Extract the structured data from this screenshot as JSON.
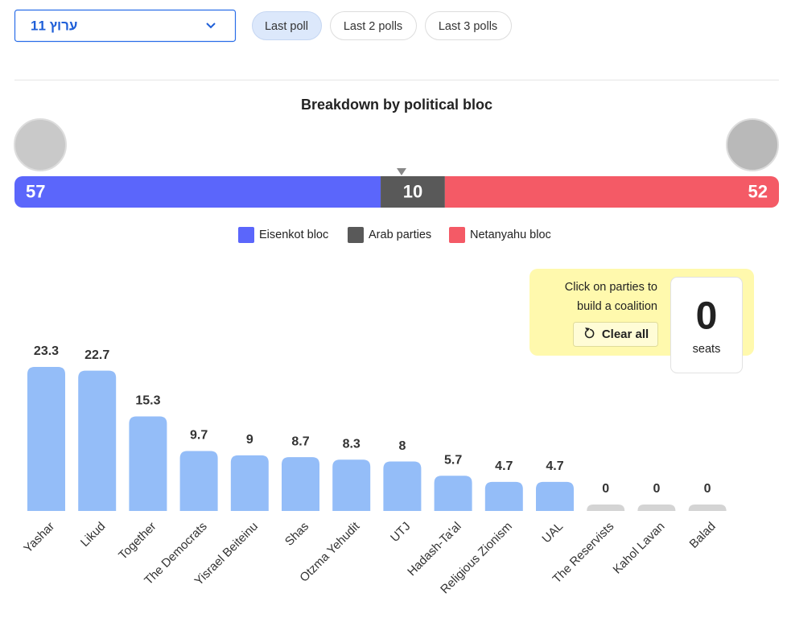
{
  "controls": {
    "source": "ערוץ 11",
    "buttons": [
      "Last poll",
      "Last 2 polls",
      "Last 3 polls"
    ],
    "selected": 0
  },
  "chart_data": [
    {
      "type": "stacked-bar-horizontal",
      "title": "Breakdown by political bloc",
      "series": [
        {
          "name": "Eisenkot bloc",
          "color": "#5b66fb",
          "values": [
            57
          ]
        },
        {
          "name": "Arab parties",
          "color": "#595959",
          "values": [
            10
          ]
        },
        {
          "name": "Netanyahu bloc",
          "color": "#f45a66",
          "values": [
            52
          ]
        }
      ]
    },
    {
      "type": "bar",
      "categories": [
        "Yashar",
        "Likud",
        "Together",
        "The Democrats",
        "Yisrael Beiteinu",
        "Shas",
        "Otzma Yehudit",
        "UTJ",
        "Hadash-Ta'al",
        "Religious Zionism",
        "UAL",
        "The Reservists",
        "Kahol Lavan",
        "Balad"
      ],
      "values": [
        23.3,
        22.7,
        15.3,
        9.7,
        9,
        8.7,
        8.3,
        8,
        5.7,
        4.7,
        4.7,
        0,
        0,
        0
      ],
      "color": "#94bdf8",
      "zero_color": "#d4d4d4"
    }
  ],
  "coalition": {
    "hint": [
      "Click on parties to",
      "build a coalition"
    ],
    "clear": "Clear all",
    "seats": 0,
    "seats_label": "seats"
  }
}
